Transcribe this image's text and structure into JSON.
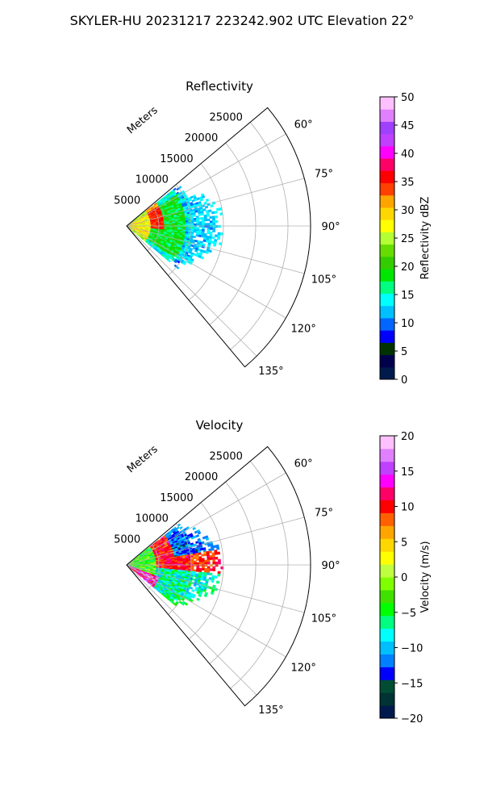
{
  "figure": {
    "title": "SKYLER-HU  20231217  223242.902 UTC Elevation 22°"
  },
  "chart_data": [
    {
      "type": "heatmap",
      "projection": "polar-sector",
      "title": "Reflectivity",
      "radial_axis_label": "Meters",
      "radial_ticks": [
        "5000",
        "10000",
        "15000",
        "20000",
        "25000"
      ],
      "radial_range": [
        0,
        28500
      ],
      "angle_range_deg": [
        50,
        140
      ],
      "angle_ticks": [
        "60°",
        "75°",
        "90°",
        "105°",
        "120°",
        "135°"
      ],
      "grid": true,
      "colorbar": {
        "label": "Reflectivity dBZ",
        "range": [
          0,
          50
        ],
        "ticks": [
          "0",
          "5",
          "10",
          "15",
          "20",
          "25",
          "30",
          "35",
          "40",
          "45",
          "50"
        ],
        "colors": [
          "#001a4d",
          "#00004d",
          "#003300",
          "#0000ff",
          "#0066ff",
          "#00bfff",
          "#00ffff",
          "#00ff80",
          "#00e600",
          "#33cc00",
          "#66dd00",
          "#b3ff33",
          "#ffff00",
          "#ffd700",
          "#ffa500",
          "#ff4000",
          "#ff0000",
          "#ff0066",
          "#ff00ff",
          "#c040ff",
          "#a040ff",
          "#e080ff",
          "#ffc0ff"
        ]
      },
      "echo": {
        "max_range_m": 15000,
        "angle_span_deg": [
          52,
          130
        ],
        "core_value_dbz": 28,
        "band_value_dbz": 35,
        "outer_value_dbz": 18,
        "edge_value_dbz": 13
      }
    },
    {
      "type": "heatmap",
      "projection": "polar-sector",
      "title": "Velocity",
      "radial_axis_label": "Meters",
      "radial_ticks": [
        "5000",
        "10000",
        "15000",
        "20000",
        "25000"
      ],
      "radial_range": [
        0,
        28500
      ],
      "angle_range_deg": [
        50,
        140
      ],
      "angle_ticks": [
        "60°",
        "75°",
        "90°",
        "105°",
        "120°",
        "135°"
      ],
      "grid": true,
      "colorbar": {
        "label": "Velocity (m/s)",
        "range": [
          -20,
          20
        ],
        "ticks": [
          "−20",
          "−15",
          "−10",
          "−5",
          "0",
          "5",
          "10",
          "15",
          "20"
        ],
        "colors": [
          "#001a4d",
          "#003333",
          "#004d33",
          "#0000ff",
          "#0080ff",
          "#00bfff",
          "#00ffff",
          "#00ff80",
          "#00ff00",
          "#40e000",
          "#80ff00",
          "#c0ff40",
          "#ffff00",
          "#ffd700",
          "#ffa500",
          "#ff6000",
          "#ff0000",
          "#ff0066",
          "#ff00ff",
          "#c040ff",
          "#e080ff",
          "#ffc0ff"
        ]
      },
      "echo": {
        "max_range_m": 15000,
        "angle_span_deg": [
          52,
          130
        ],
        "outbound_value_ms": 10,
        "inbound_value_ms": -12,
        "near_value_ms": -3
      }
    }
  ]
}
